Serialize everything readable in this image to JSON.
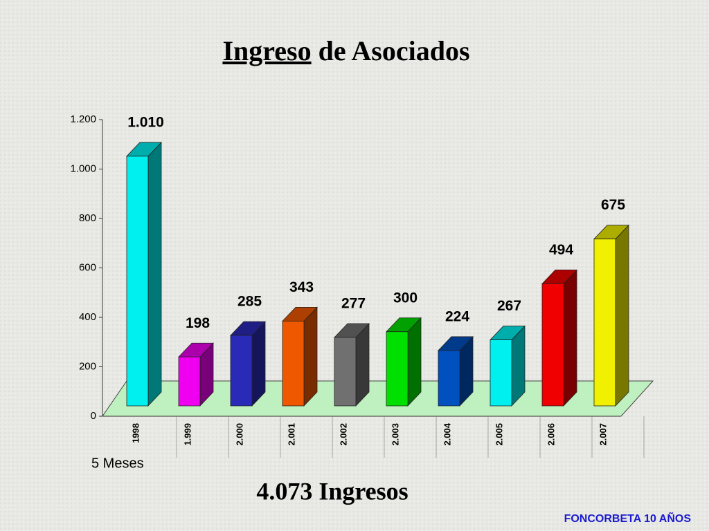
{
  "chart_data": {
    "type": "bar3d",
    "title": "Ingreso de Asociados",
    "annotations": [
      "5 Meses",
      "4.073 Ingresos"
    ],
    "footer": "FONCORBETA 10 AÑOS",
    "categories": [
      "1998",
      "1.999",
      "2.000",
      "2.001",
      "2.002",
      "2.003",
      "2.004",
      "2.005",
      "2.006",
      "2.007"
    ],
    "values": [
      1010,
      198,
      285,
      343,
      277,
      300,
      224,
      267,
      494,
      675
    ],
    "value_labels": [
      "1.010",
      "198",
      "285",
      "343",
      "277",
      "300",
      "224",
      "267",
      "494",
      "675"
    ],
    "colors": [
      "#00f0f0",
      "#f000f0",
      "#2a2ab8",
      "#f05800",
      "#707070",
      "#00e000",
      "#0050c0",
      "#00f0f0",
      "#f00000",
      "#f0f000"
    ],
    "ylim": [
      0,
      1200
    ],
    "yticks": [
      {
        "value": 0,
        "label": "0"
      },
      {
        "value": 200,
        "label": "200"
      },
      {
        "value": 400,
        "label": "400"
      },
      {
        "value": 600,
        "label": "600"
      },
      {
        "value": 800,
        "label": "800"
      },
      {
        "value": 1000,
        "label": "1.000"
      },
      {
        "value": 1200,
        "label": "1.200"
      }
    ]
  }
}
